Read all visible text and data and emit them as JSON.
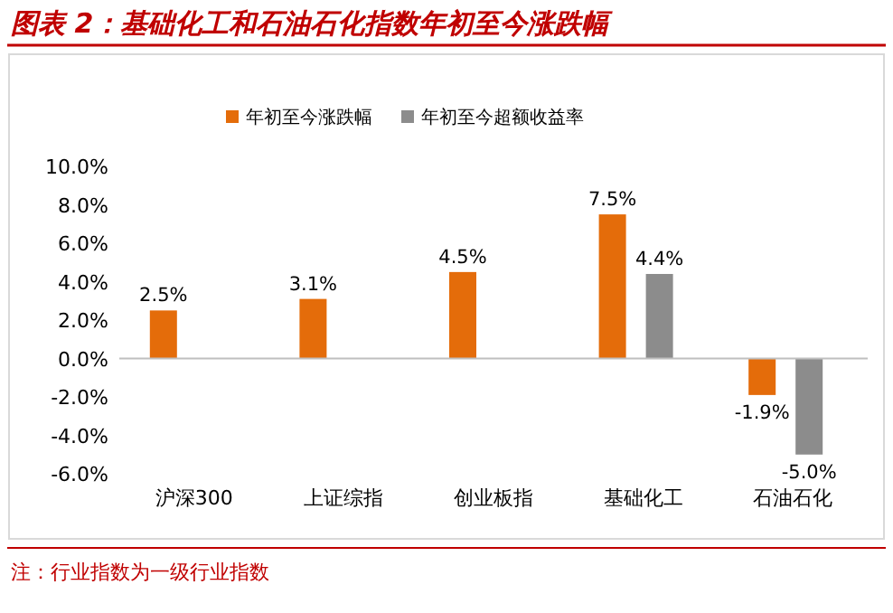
{
  "chart_data": {
    "type": "bar",
    "title": "图表 2：基础化工和石油石化指数年初至今涨跌幅",
    "categories": [
      "沪深300",
      "上证综指",
      "创业板指",
      "基础化工",
      "石油石化"
    ],
    "series": [
      {
        "name": "年初至今涨跌幅",
        "color": "#e46c0a",
        "values": [
          2.5,
          3.1,
          4.5,
          7.5,
          -1.9
        ],
        "value_labels": [
          "2.5%",
          "3.1%",
          "4.5%",
          "7.5%",
          "-1.9%"
        ]
      },
      {
        "name": "年初至今超额收益率",
        "color": "#8c8c8c",
        "values": [
          null,
          null,
          null,
          4.4,
          -5.0
        ],
        "value_labels": [
          null,
          null,
          null,
          "4.4%",
          "-5.0%"
        ]
      }
    ],
    "ylim": [
      -6,
      10
    ],
    "yticks": [
      {
        "value": -6,
        "label": "-6.0%"
      },
      {
        "value": -4,
        "label": "-4.0%"
      },
      {
        "value": -2,
        "label": "-2.0%"
      },
      {
        "value": 0,
        "label": "0.0%"
      },
      {
        "value": 2,
        "label": "2.0%"
      },
      {
        "value": 4,
        "label": "4.0%"
      },
      {
        "value": 6,
        "label": "6.0%"
      },
      {
        "value": 8,
        "label": "8.0%"
      },
      {
        "value": 10,
        "label": "10.0%"
      }
    ],
    "legend": "top",
    "annotations": [
      "注：行业指数为一级行业指数"
    ]
  }
}
